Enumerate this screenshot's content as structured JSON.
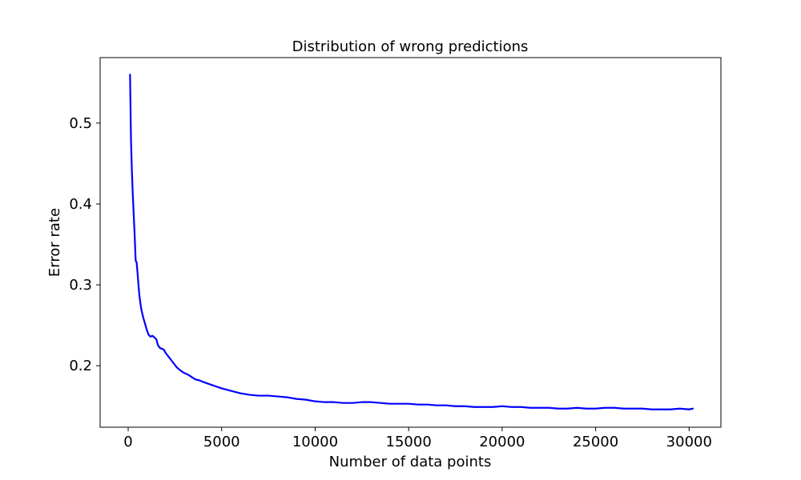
{
  "chart_data": {
    "type": "line",
    "title": "Distribution of wrong predictions",
    "xlabel": "Number of data points",
    "ylabel": "Error rate",
    "xlim": [
      -1500,
      31700
    ],
    "ylim": [
      0.124,
      0.581
    ],
    "xticks": [
      0,
      5000,
      10000,
      15000,
      20000,
      25000,
      30000
    ],
    "xtick_labels": [
      "0",
      "5000",
      "10000",
      "15000",
      "20000",
      "25000",
      "30000"
    ],
    "yticks": [
      0.2,
      0.3,
      0.4,
      0.5
    ],
    "ytick_labels": [
      "0.2",
      "0.3",
      "0.4",
      "0.5"
    ],
    "grid": false,
    "series": [
      {
        "color": "#0000ff",
        "x": [
          100,
          150,
          200,
          250,
          300,
          350,
          400,
          450,
          500,
          550,
          600,
          650,
          700,
          800,
          900,
          1000,
          1100,
          1200,
          1300,
          1400,
          1500,
          1600,
          1700,
          1800,
          1900,
          2000,
          2200,
          2400,
          2600,
          2800,
          3000,
          3200,
          3400,
          3600,
          3800,
          4000,
          4500,
          5000,
          5500,
          6000,
          6500,
          7000,
          7500,
          8000,
          8500,
          9000,
          9500,
          10000,
          10500,
          11000,
          11500,
          12000,
          12500,
          13000,
          13500,
          14000,
          14500,
          15000,
          15500,
          16000,
          16500,
          17000,
          17500,
          18000,
          18500,
          19000,
          19500,
          20000,
          20500,
          21000,
          21500,
          22000,
          22500,
          23000,
          23500,
          24000,
          24500,
          25000,
          25500,
          26000,
          26500,
          27000,
          27500,
          28000,
          28500,
          29000,
          29500,
          30000,
          30200
        ],
        "y": [
          0.56,
          0.48,
          0.44,
          0.41,
          0.385,
          0.36,
          0.33,
          0.328,
          0.315,
          0.3,
          0.287,
          0.278,
          0.27,
          0.26,
          0.252,
          0.244,
          0.238,
          0.236,
          0.237,
          0.235,
          0.233,
          0.225,
          0.222,
          0.221,
          0.22,
          0.216,
          0.21,
          0.204,
          0.198,
          0.194,
          0.191,
          0.189,
          0.186,
          0.183,
          0.182,
          0.18,
          0.176,
          0.172,
          0.169,
          0.166,
          0.164,
          0.163,
          0.163,
          0.162,
          0.161,
          0.159,
          0.158,
          0.156,
          0.155,
          0.155,
          0.154,
          0.154,
          0.155,
          0.155,
          0.154,
          0.153,
          0.153,
          0.153,
          0.152,
          0.152,
          0.151,
          0.151,
          0.15,
          0.15,
          0.149,
          0.149,
          0.149,
          0.15,
          0.149,
          0.149,
          0.148,
          0.148,
          0.148,
          0.147,
          0.147,
          0.148,
          0.147,
          0.147,
          0.148,
          0.148,
          0.147,
          0.147,
          0.147,
          0.146,
          0.146,
          0.146,
          0.147,
          0.146,
          0.147
        ]
      }
    ]
  }
}
